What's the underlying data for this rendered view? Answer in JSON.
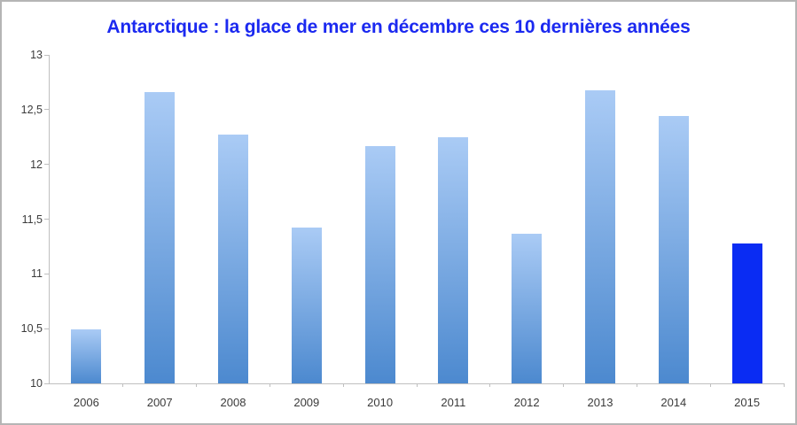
{
  "title": {
    "text": "Antarctique : la glace de mer en décembre ces 10 dernières années",
    "color": "#1b29f0"
  },
  "chart_data": {
    "type": "bar",
    "title": "Antarctique : la glace de mer en décembre ces 10 dernières années",
    "categories": [
      "2006",
      "2007",
      "2008",
      "2009",
      "2010",
      "2011",
      "2012",
      "2013",
      "2014",
      "2015"
    ],
    "values": [
      10.49,
      12.66,
      12.27,
      11.42,
      12.17,
      12.25,
      11.37,
      12.68,
      12.44,
      11.28
    ],
    "highlight_category": "2015",
    "xlabel": "",
    "ylabel": "",
    "ylim": [
      10,
      13
    ],
    "yticks": [
      10,
      10.5,
      11,
      11.5,
      12,
      12.5,
      13
    ],
    "ytick_labels": [
      "10",
      "10,5",
      "11",
      "11,5",
      "12",
      "12,5",
      "13"
    ],
    "decimal_separator": ",",
    "grid": false,
    "legend": false,
    "colors": {
      "bar_gradient_top": "#aacbf5",
      "bar_gradient_bottom": "#4c89cf",
      "highlight_bar": "#0a2cf3",
      "axis_line": "#bfbfbf",
      "tick_label": "#3b3b3b",
      "title": "#1b29f0",
      "frame_border": "#b5b5b5"
    }
  }
}
